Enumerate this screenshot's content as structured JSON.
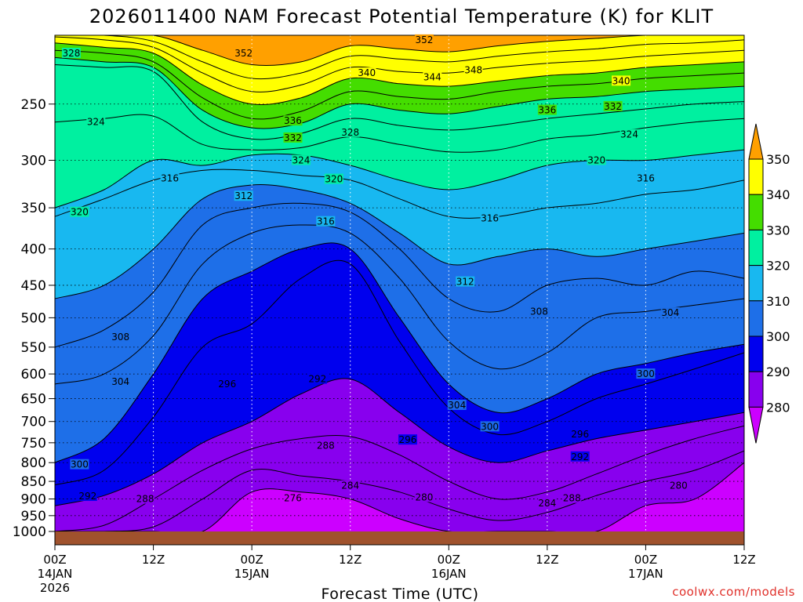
{
  "chart_data": {
    "type": "area",
    "title": "2026011400 NAM Forecast Potential Temperature (K) for KLIT",
    "xlabel": "Forecast Time (UTC)",
    "ylabel": "",
    "credit": "coolwx.com/models",
    "y_axis": {
      "scale": "log",
      "inverted": true,
      "ylim": [
        1000,
        200
      ],
      "ticks": [
        250,
        300,
        350,
        400,
        450,
        500,
        550,
        600,
        650,
        700,
        750,
        800,
        850,
        900,
        950,
        1000
      ]
    },
    "x_axis": {
      "xlim": [
        0,
        84
      ],
      "ticks": [
        {
          "hour": 0,
          "label": "00Z",
          "sub": "14JAN",
          "sub2": "2026"
        },
        {
          "hour": 12,
          "label": "12Z",
          "sub": "",
          "sub2": ""
        },
        {
          "hour": 24,
          "label": "00Z",
          "sub": "15JAN",
          "sub2": ""
        },
        {
          "hour": 36,
          "label": "12Z",
          "sub": "",
          "sub2": ""
        },
        {
          "hour": 48,
          "label": "00Z",
          "sub": "16JAN",
          "sub2": ""
        },
        {
          "hour": 60,
          "label": "12Z",
          "sub": "",
          "sub2": ""
        },
        {
          "hour": 72,
          "label": "00Z",
          "sub": "17JAN",
          "sub2": ""
        },
        {
          "hour": 84,
          "label": "12Z",
          "sub": "",
          "sub2": ""
        }
      ]
    },
    "grid": true,
    "colorbar": {
      "placement": "right",
      "levels": [
        280,
        290,
        300,
        310,
        320,
        330,
        340,
        350
      ],
      "colors": [
        "#cc00ff",
        "#8800ee",
        "#0000ee",
        "#1e6fe8",
        "#18b8f0",
        "#00f0a0",
        "#44dd00",
        "#ffff00",
        "#ffa000"
      ]
    },
    "isentropes": {
      "x": [
        0,
        6,
        12,
        18,
        24,
        30,
        36,
        42,
        48,
        54,
        60,
        66,
        72,
        78,
        84
      ],
      "series": [
        {
          "theta": 280,
          "p": [
            1000,
            1000,
            1000,
            1000,
            880,
            880,
            900,
            960,
            1000,
            1000,
            1000,
            1000,
            920,
            900,
            800
          ]
        },
        {
          "theta": 284,
          "p": [
            1000,
            1000,
            985,
            900,
            820,
            835,
            850,
            880,
            930,
            965,
            940,
            890,
            850,
            820,
            770
          ]
        },
        {
          "theta": 288,
          "p": [
            1000,
            980,
            900,
            820,
            765,
            740,
            735,
            780,
            850,
            900,
            880,
            830,
            780,
            740,
            710
          ]
        },
        {
          "theta": 292,
          "p": [
            920,
            890,
            830,
            750,
            700,
            640,
            610,
            680,
            760,
            800,
            770,
            740,
            720,
            700,
            680
          ]
        },
        {
          "theta": 296,
          "p": [
            860,
            820,
            690,
            550,
            510,
            440,
            420,
            540,
            670,
            730,
            700,
            650,
            620,
            590,
            560
          ]
        },
        {
          "theta": 300,
          "p": [
            800,
            740,
            600,
            470,
            430,
            400,
            400,
            500,
            620,
            680,
            650,
            600,
            580,
            560,
            545
          ]
        },
        {
          "theta": 304,
          "p": [
            620,
            600,
            530,
            420,
            380,
            370,
            380,
            440,
            540,
            590,
            560,
            500,
            490,
            480,
            470
          ]
        },
        {
          "theta": 308,
          "p": [
            550,
            520,
            460,
            370,
            350,
            345,
            355,
            400,
            470,
            490,
            450,
            440,
            450,
            430,
            440
          ]
        },
        {
          "theta": 312,
          "p": [
            470,
            450,
            400,
            340,
            325,
            330,
            345,
            380,
            420,
            410,
            400,
            410,
            400,
            390,
            380
          ]
        },
        {
          "theta": 316,
          "p": [
            360,
            340,
            320,
            310,
            310,
            315,
            320,
            340,
            360,
            360,
            350,
            345,
            335,
            330,
            320
          ]
        },
        {
          "theta": 320,
          "p": [
            350,
            330,
            300,
            305,
            295,
            295,
            305,
            320,
            330,
            320,
            305,
            300,
            300,
            295,
            290
          ]
        },
        {
          "theta": 324,
          "p": [
            265,
            262,
            260,
            285,
            290,
            288,
            278,
            285,
            292,
            290,
            280,
            276,
            270,
            265,
            262
          ]
        },
        {
          "theta": 328,
          "p": [
            220,
            222,
            225,
            265,
            280,
            275,
            262,
            268,
            272,
            268,
            262,
            258,
            254,
            250,
            248
          ]
        },
        {
          "theta": 332,
          "p": [
            215,
            218,
            222,
            255,
            270,
            266,
            250,
            255,
            258,
            252,
            246,
            244,
            240,
            238,
            236
          ]
        },
        {
          "theta": 336,
          "p": [
            210,
            212,
            218,
            245,
            262,
            256,
            240,
            244,
            246,
            240,
            236,
            234,
            230,
            228,
            226
          ]
        },
        {
          "theta": 340,
          "p": [
            205,
            208,
            212,
            235,
            250,
            245,
            230,
            234,
            236,
            232,
            228,
            226,
            222,
            220,
            218
          ]
        },
        {
          "theta": 344,
          "p": [
            201,
            203,
            208,
            226,
            240,
            235,
            222,
            225,
            226,
            222,
            219,
            217,
            214,
            212,
            210
          ]
        },
        {
          "theta": 348,
          "p": [
            200,
            200,
            204,
            218,
            230,
            226,
            214,
            216,
            218,
            214,
            211,
            209,
            206,
            205,
            203
          ]
        },
        {
          "theta": 352,
          "p": [
            200,
            200,
            200,
            210,
            220,
            218,
            207,
            209,
            211,
            207,
            204,
            202,
            200,
            200,
            200
          ]
        }
      ]
    },
    "contour_labels": [
      {
        "text": "328",
        "hour": 2,
        "p": 212
      },
      {
        "text": "352",
        "hour": 23,
        "p": 212
      },
      {
        "text": "352",
        "hour": 45,
        "p": 203
      },
      {
        "text": "340",
        "hour": 38,
        "p": 226
      },
      {
        "text": "344",
        "hour": 46,
        "p": 229
      },
      {
        "text": "348",
        "hour": 51,
        "p": 224
      },
      {
        "text": "340",
        "hour": 69,
        "p": 232
      },
      {
        "text": "324",
        "hour": 5,
        "p": 265
      },
      {
        "text": "336",
        "hour": 29,
        "p": 264
      },
      {
        "text": "332",
        "hour": 29,
        "p": 279
      },
      {
        "text": "328",
        "hour": 36,
        "p": 274
      },
      {
        "text": "336",
        "hour": 60,
        "p": 255
      },
      {
        "text": "332",
        "hour": 68,
        "p": 252
      },
      {
        "text": "324",
        "hour": 70,
        "p": 276
      },
      {
        "text": "324",
        "hour": 30,
        "p": 300
      },
      {
        "text": "320",
        "hour": 34,
        "p": 319
      },
      {
        "text": "320",
        "hour": 66,
        "p": 300
      },
      {
        "text": "316",
        "hour": 14,
        "p": 318
      },
      {
        "text": "316",
        "hour": 72,
        "p": 318
      },
      {
        "text": "312",
        "hour": 23,
        "p": 337
      },
      {
        "text": "316",
        "hour": 33,
        "p": 366
      },
      {
        "text": "316",
        "hour": 53,
        "p": 362
      },
      {
        "text": "320",
        "hour": 3,
        "p": 355
      },
      {
        "text": "312",
        "hour": 50,
        "p": 445
      },
      {
        "text": "308",
        "hour": 59,
        "p": 490
      },
      {
        "text": "304",
        "hour": 75,
        "p": 492
      },
      {
        "text": "308",
        "hour": 8,
        "p": 532
      },
      {
        "text": "304",
        "hour": 8,
        "p": 615
      },
      {
        "text": "296",
        "hour": 21,
        "p": 620
      },
      {
        "text": "292",
        "hour": 32,
        "p": 610
      },
      {
        "text": "304",
        "hour": 49,
        "p": 664
      },
      {
        "text": "300",
        "hour": 53,
        "p": 712
      },
      {
        "text": "300",
        "hour": 72,
        "p": 600
      },
      {
        "text": "296",
        "hour": 43,
        "p": 743
      },
      {
        "text": "296",
        "hour": 64,
        "p": 730
      },
      {
        "text": "292",
        "hour": 64,
        "p": 785
      },
      {
        "text": "288",
        "hour": 33,
        "p": 757
      },
      {
        "text": "300",
        "hour": 3,
        "p": 805
      },
      {
        "text": "284",
        "hour": 36,
        "p": 862
      },
      {
        "text": "292",
        "hour": 4,
        "p": 892
      },
      {
        "text": "288",
        "hour": 11,
        "p": 900
      },
      {
        "text": "276",
        "hour": 29,
        "p": 898
      },
      {
        "text": "280",
        "hour": 45,
        "p": 895
      },
      {
        "text": "284",
        "hour": 60,
        "p": 912
      },
      {
        "text": "288",
        "hour": 63,
        "p": 898
      },
      {
        "text": "280",
        "hour": 76,
        "p": 862
      }
    ]
  }
}
